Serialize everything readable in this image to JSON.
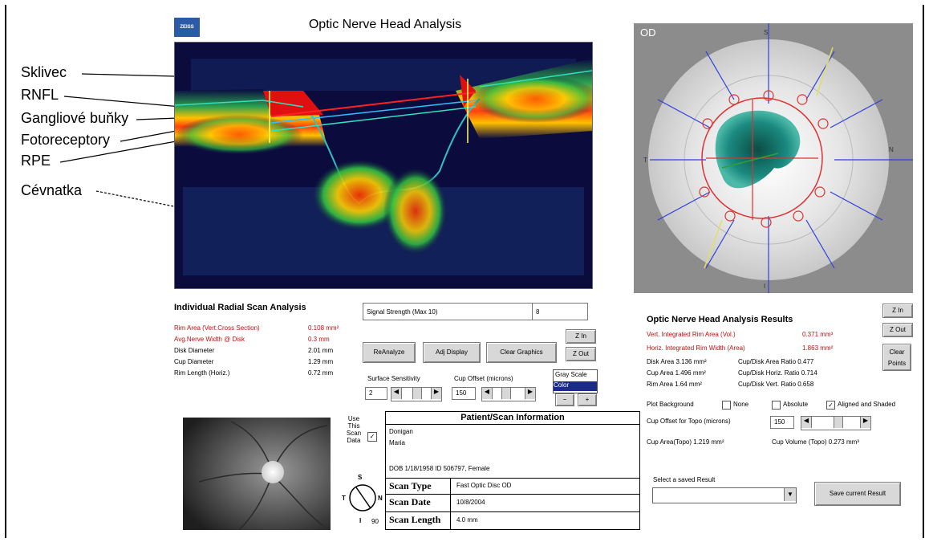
{
  "annotations": {
    "sklivec": "Sklivec",
    "rnfl": "RNFL",
    "ganglion": "Gangliové buňky",
    "foto": "Fotoreceptory",
    "rpe": "RPE",
    "cevnatka": "Cévnatka"
  },
  "header": {
    "logo": "ZEISS",
    "title": "Optic Nerve Head Analysis"
  },
  "fundus": {
    "eye_label": "OD",
    "compass": {
      "s": "S",
      "i": "I",
      "n": "N",
      "t": "T"
    }
  },
  "radial": {
    "title": "Individual Radial Scan Analysis",
    "rows": [
      {
        "label": "Rim Area (Vert.Cross Section)",
        "value": "0.108 mm²",
        "red": true
      },
      {
        "label": "Avg.Nerve Width @ Disk",
        "value": "0.3 mm",
        "red": true
      },
      {
        "label": "Disk Diameter",
        "value": "2.01 mm",
        "red": false
      },
      {
        "label": "Cup Diameter",
        "value": "1.29 mm",
        "red": false
      },
      {
        "label": "Rim Length (Horiz.)",
        "value": "0.72 mm",
        "red": false
      }
    ]
  },
  "signal": {
    "label": "Signal Strength (Max 10)",
    "value": "8"
  },
  "mid_buttons": {
    "reanalyze": "ReAnalyze",
    "adj_display": "Adj Display",
    "clear_graphics": "Clear Graphics",
    "zoom_in": "Z In",
    "zoom_out": "Z Out"
  },
  "sliders": {
    "surface_label": "Surface Sensitivity",
    "surface_value": "2",
    "cup_label": "Cup Offset (microns)",
    "cup_value": "150"
  },
  "color_list": {
    "options": [
      "Gray Scale",
      "Color"
    ],
    "selected": "Color"
  },
  "plus_minus": {
    "minus": "−",
    "plus": "+"
  },
  "use_scan": {
    "label": "Use This Scan Data",
    "compass_s": "S",
    "compass_t": "T",
    "compass_n": "N",
    "compass_i": "I",
    "angle": "90"
  },
  "patient": {
    "header": "Patient/Scan Information",
    "last_name": "Donigan",
    "first_name": "Maria",
    "dob_line": "DOB 1/18/1958  ID 506797, Female",
    "scan_type_label": "Scan Type",
    "scan_type": "Fast Optic Disc   OD",
    "scan_date_label": "Scan Date",
    "scan_date": "10/8/2004",
    "scan_length_label": "Scan Length",
    "scan_length": "4.0 mm"
  },
  "results": {
    "title": "Optic Nerve Head Analysis Results",
    "vert": {
      "label": "Vert. Integrated Rim Area (Vol.)",
      "value": "0.371 mm³"
    },
    "horiz": {
      "label": "Horiz. Integrated Rim Width (Area)",
      "value": "1.863 mm²"
    },
    "rows": [
      {
        "a": "Disk Area  3.136 mm²",
        "b": "Cup/Disk Area Ratio  0.477"
      },
      {
        "a": "Cup Area   1.496 mm²",
        "b": "Cup/Disk Horiz. Ratio  0.714"
      },
      {
        "a": "Rim Area   1.64 mm²",
        "b": "Cup/Disk Vert. Ratio  0.658"
      }
    ],
    "zoom_in": "Z In",
    "zoom_out": "Z Out",
    "clear_points": "Clear Points",
    "plot_bg_label": "Plot Background",
    "none_label": "None",
    "absolute_label": "Absolute",
    "aligned_label": "Aligned and Shaded",
    "cup_offset_label": "Cup Offset for Topo (microns)",
    "cup_offset_value": "150",
    "cup_area_topo": "Cup Area(Topo)  1.219 mm²",
    "cup_volume_topo": "Cup Volume (Topo)  0.273 mm³",
    "select_label": "Select a saved Result",
    "save_button": "Save current Result"
  },
  "colors": {
    "rim_red": "#c01010",
    "logo_blue": "#2b5aa6",
    "selected_blue": "#1c2a8a"
  }
}
